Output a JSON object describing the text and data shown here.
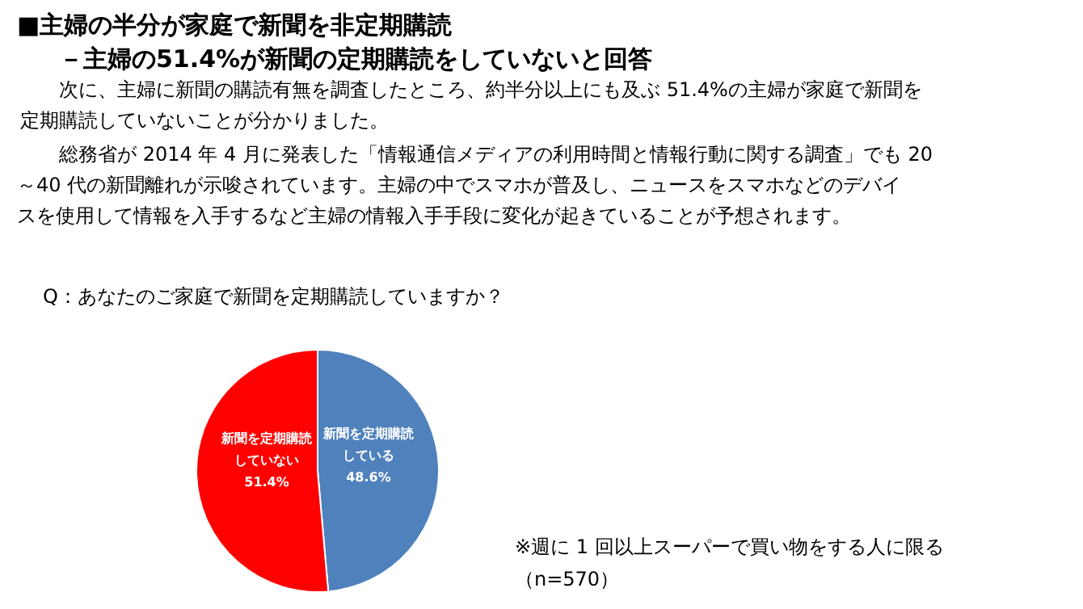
{
  "chart_data": {
    "type": "pie",
    "title": "■主婦の半分が家庭で新聞を非定期購読",
    "subtitle": "－主婦の51.4%が新聞の定期購読をしていないと回答",
    "categories": [
      "新聞を定期購読している",
      "新聞を定期購読していない"
    ],
    "values": [
      48.6,
      51.4
    ],
    "colors": [
      "#4f81bd",
      "#ff0000"
    ],
    "value_labels": [
      "48.6%",
      "51.4%"
    ],
    "annotations": [
      "次に、主婦に新聞の購読有無を調査したところ、約半分以上にも及ぶ 51.4%の主婦が家庭で新聞を",
      "定期購読していないことが分かりました。",
      "総務省が 2014 年 4 月に発表した「情報通信メディアの利用時間と情報行動に関する調査」でも 20",
      "～40 代の新聞離れが示唆されています。主婦の中でスマホが普及し、ニュースをスマホなどのデバイ",
      "スを使用して情報を入手するなど主婦の情報入手手段に変化が起きていることが予想されます。",
      "Q：あなたのご家庭で新聞を定期購読していますか？",
      "※週に 1 回以上スーパーで買い物をする人に限る",
      "（n=570）"
    ]
  }
}
